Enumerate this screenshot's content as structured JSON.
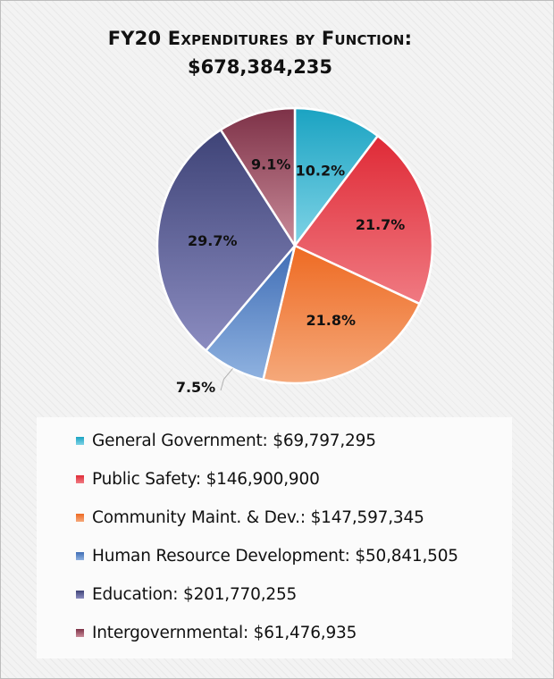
{
  "title": {
    "line1": "FY20 Expenditures by Function:",
    "line2": "$678,384,235"
  },
  "chart_data": {
    "type": "pie",
    "title": "FY20 Expenditures by Function: $678,384,235",
    "legend_position": "bottom",
    "slices": [
      {
        "name": "General Government",
        "value": 69797295,
        "percent_label": "10.2%",
        "legend_label": "General Government: $69,797,295",
        "color_light": "#7fd3e6",
        "color_dark": "#1aa3c2"
      },
      {
        "name": "Public Safety",
        "value": 146900900,
        "percent_label": "21.7%",
        "legend_label": "Public Safety: $146,900,900",
        "color_light": "#f07a82",
        "color_dark": "#df2a36"
      },
      {
        "name": "Community Maint. & Dev.",
        "value": 147597345,
        "percent_label": "21.8%",
        "legend_label": "Community Maint. & Dev.: $147,597,345",
        "color_light": "#f5a97b",
        "color_dark": "#ee6a22"
      },
      {
        "name": "Human Resource Development",
        "value": 50841505,
        "percent_label": "7.5%",
        "legend_label": "Human Resource Development: $50,841,505",
        "color_light": "#8fb2e0",
        "color_dark": "#3f6db5"
      },
      {
        "name": "Education",
        "value": 201770255,
        "percent_label": "29.7%",
        "legend_label": "Education: $201,770,255",
        "color_light": "#8b8cc0",
        "color_dark": "#3e4377"
      },
      {
        "name": "Intergovernmental",
        "value": 61476935,
        "percent_label": "9.1%",
        "legend_label": "Intergovernmental: $61,476,935",
        "color_light": "#c98b99",
        "color_dark": "#7d3147"
      }
    ]
  }
}
